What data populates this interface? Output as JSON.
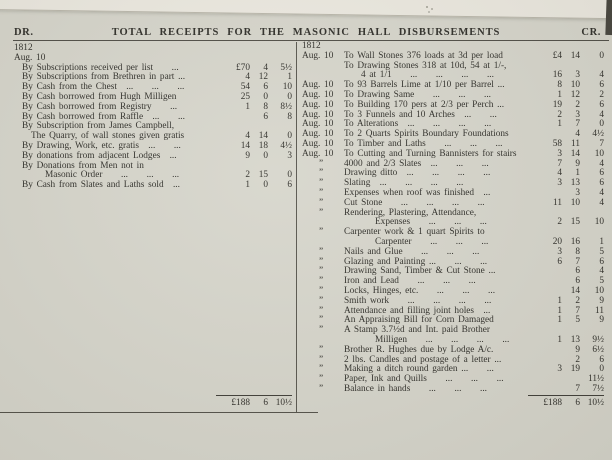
{
  "header": {
    "dr": "DR.",
    "title": "TOTAL RECEIPTS FOR THE MASONIC HALL DISBURSEMENTS",
    "cr": "CR."
  },
  "left": {
    "year": "1812",
    "date_heading": "Aug. 10",
    "rows": [
      {
        "desc": "By Subscriptions received per list  ...",
        "p": "£70",
        "s": "4",
        "d": "5½",
        "i": 1
      },
      {
        "desc": "By Subscriptions from Brethren in part ...",
        "p": "4",
        "s": "12",
        "d": "1",
        "i": 1
      },
      {
        "desc": "By Cash from the Chest ...  ...  ...",
        "p": "54",
        "s": "6",
        "d": "10",
        "i": 1
      },
      {
        "desc": "By Cash borrowed from Hugh Milligen",
        "p": "25",
        "s": "0",
        "d": "0",
        "i": 1
      },
      {
        "desc": "By Cash borrowed from Registry  ...",
        "p": "1",
        "s": "8",
        "d": "8½",
        "i": 1
      },
      {
        "desc": "By Cash borrowed from Raffle ...  ...",
        "p": "",
        "s": "6",
        "d": "8",
        "i": 1
      },
      {
        "desc": "By Subscription from James Campbell,",
        "p": "",
        "s": "",
        "d": "",
        "i": 1
      },
      {
        "desc": "The Quarry, of wall stones given gratis",
        "p": "4",
        "s": "14",
        "d": "0",
        "i": 2
      },
      {
        "desc": "By Drawing, Work, etc. gratis ...  ...",
        "p": "14",
        "s": "18",
        "d": "4½",
        "i": 1
      },
      {
        "desc": "By donations from adjacent Lodges ...",
        "p": "9",
        "s": "0",
        "d": "3",
        "i": 1
      },
      {
        "desc": "By Donations from Men not in",
        "p": "",
        "s": "",
        "d": "",
        "i": 1
      },
      {
        "desc": "Masonic Order  ...  ...  ...",
        "p": "2",
        "s": "15",
        "d": "0",
        "i": 3
      },
      {
        "desc": "By Cash from Slates and Laths sold ...",
        "p": "1",
        "s": "0",
        "d": "6",
        "i": 1
      }
    ],
    "total": {
      "pound": "£188",
      "shillings": "6",
      "pence": "10½"
    }
  },
  "right": {
    "year": "1812",
    "rows": [
      {
        "date": "Aug. 10",
        "desc": "To Wall Stones 376 loads at 3d per load",
        "p": "£4",
        "s": "14",
        "d": "0",
        "i": 0
      },
      {
        "date": "",
        "desc": "To Drawing Stones 318 at 10d, 54 at 1/-,",
        "p": "",
        "s": "",
        "d": "",
        "i": 0
      },
      {
        "date": "",
        "desc": "4 at 1/1  ...  ...  ...  ...",
        "p": "16",
        "s": "3",
        "d": "4",
        "i": 2
      },
      {
        "date": "Aug. 10",
        "desc": "To 93 Barrels Lime at 1/10 per Barrel ...",
        "p": "8",
        "s": "10",
        "d": "6",
        "i": 0
      },
      {
        "date": "Aug. 10",
        "desc": "To Drawing Same  ...  ...  ...",
        "p": "1",
        "s": "12",
        "d": "2",
        "i": 0
      },
      {
        "date": "Aug. 10",
        "desc": "To Building 170 pers at 2/3 per Perch ...",
        "p": "19",
        "s": "2",
        "d": "6",
        "i": 0
      },
      {
        "date": "Aug. 10",
        "desc": "To 3 Funnels and 10 Arches ...  ...",
        "p": "2",
        "s": "3",
        "d": "4",
        "i": 0
      },
      {
        "date": "Aug. 10",
        "desc": "To Alterations ...  ...  ...  ...",
        "p": "1",
        "s": "7",
        "d": "0",
        "i": 0
      },
      {
        "date": "Aug. 10",
        "desc": "To 2 Quarts Spirits Boundary Foundations",
        "p": "",
        "s": "4",
        "d": "4½",
        "i": 0
      },
      {
        "date": "Aug. 10",
        "desc": "To Timber and Laths  ...  ...  ...",
        "p": "58",
        "s": "11",
        "d": "7",
        "i": 0
      },
      {
        "date": "Aug. 10",
        "desc": "To Cutting and Turning Bannisters for stairs",
        "p": "3",
        "s": "14",
        "d": "10",
        "i": 0
      },
      {
        "date": "”",
        "desc": "4000 and 2/3 Slates ...  ...  ...",
        "p": "7",
        "s": "9",
        "d": "4",
        "i": 0
      },
      {
        "date": "”",
        "desc": "Drawing ditto ...  ...  ...  ...",
        "p": "4",
        "s": "1",
        "d": "6",
        "i": 0
      },
      {
        "date": "”",
        "desc": "Slating ...  ...  ...  ...",
        "p": "3",
        "s": "13",
        "d": "6",
        "i": 0
      },
      {
        "date": "”",
        "desc": "Expenses when roof was finished ...",
        "p": "",
        "s": "3",
        "d": "4",
        "i": 0
      },
      {
        "date": "”",
        "desc": "Cut Stone  ...  ...  ...  ...",
        "p": "11",
        "s": "10",
        "d": "4",
        "i": 0
      },
      {
        "date": "”",
        "desc": "Rendering, Plastering, Attendance,",
        "p": "",
        "s": "",
        "d": "",
        "i": 0
      },
      {
        "date": "",
        "desc": "Expenses  ...  ...  ...",
        "p": "2",
        "s": "15",
        "d": "10",
        "i": 3
      },
      {
        "date": "”",
        "desc": "Carpenter work & 1 quart Spirits to",
        "p": "",
        "s": "",
        "d": "",
        "i": 0
      },
      {
        "date": "",
        "desc": "Carpenter  ...  ...  ...",
        "p": "20",
        "s": "16",
        "d": "1",
        "i": 3
      },
      {
        "date": "”",
        "desc": "Nails and Glue  ...  ...  ...",
        "p": "3",
        "s": "8",
        "d": "5",
        "i": 0
      },
      {
        "date": "”",
        "desc": "Glazing and Painting ...  ...  ...",
        "p": "6",
        "s": "7",
        "d": "6",
        "i": 0
      },
      {
        "date": "”",
        "desc": "Drawing Sand, Timber & Cut Stone ...",
        "p": "",
        "s": "6",
        "d": "4",
        "i": 0
      },
      {
        "date": "”",
        "desc": "Iron and Lead  ...  ...  ...",
        "p": "",
        "s": "6",
        "d": "5",
        "i": 0
      },
      {
        "date": "”",
        "desc": "Locks, Hinges, etc.  ...  ...  ...",
        "p": "",
        "s": "14",
        "d": "10",
        "i": 0
      },
      {
        "date": "”",
        "desc": "Smith work  ...  ...  ...  ...",
        "p": "1",
        "s": "2",
        "d": "9",
        "i": 0
      },
      {
        "date": "”",
        "desc": "Attendance and filling joint holes ...",
        "p": "1",
        "s": "7",
        "d": "11",
        "i": 0
      },
      {
        "date": "”",
        "desc": "An Appraising Bill for Corn Damaged",
        "p": "1",
        "s": "5",
        "d": "9",
        "i": 0
      },
      {
        "date": "”",
        "desc": "A Stamp 3.7½d and Int. paid Brother",
        "p": "",
        "s": "",
        "d": "",
        "i": 0
      },
      {
        "date": "",
        "desc": "Milligen  ...  ...  ...  ...",
        "p": "1",
        "s": "13",
        "d": "9½",
        "i": 3
      },
      {
        "date": "”",
        "desc": "Brother R. Hughes due by Lodge A/c.",
        "p": "",
        "s": "9",
        "d": "6½",
        "i": 0
      },
      {
        "date": "”",
        "desc": "2 lbs. Candles and postage of a letter ...",
        "p": "",
        "s": "2",
        "d": "6",
        "i": 0
      },
      {
        "date": "”",
        "desc": "Making a ditch round garden ...  ...",
        "p": "3",
        "s": "19",
        "d": "0",
        "i": 0
      },
      {
        "date": "”",
        "desc": "Paper, Ink and Quills  ...  ...  ...",
        "p": "",
        "s": "",
        "d": "11½",
        "i": 0
      },
      {
        "date": "”",
        "desc": "Balance in hands  ...  ...  ...",
        "p": "",
        "s": "7",
        "d": "7½",
        "i": 0
      }
    ],
    "total": {
      "pound": "£188",
      "shillings": "6",
      "pence": "10½"
    }
  },
  "colors": {
    "paper": "#d7d6cc",
    "margin_strip": "#edeae1",
    "ink": "#2e2d28",
    "rule": "#4e4c45",
    "photo_corner": "#45433c"
  }
}
